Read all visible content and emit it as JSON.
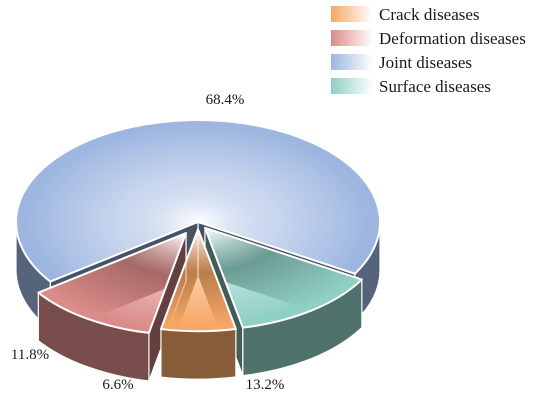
{
  "chart_data": {
    "type": "pie",
    "title": "",
    "legend_position": "top-right",
    "exploded": true,
    "three_d": true,
    "slices": [
      {
        "name": "Crack diseases",
        "value": 6.6,
        "label": "6.6%",
        "color": "#f6a765"
      },
      {
        "name": "Deformation diseases",
        "value": 11.8,
        "label": "11.8%",
        "color": "#db8c88"
      },
      {
        "name": "Joint diseases",
        "value": 68.4,
        "label": "68.4%",
        "color": "#9db6e0"
      },
      {
        "name": "Surface diseases",
        "value": 13.2,
        "label": "13.2%",
        "color": "#8fcfc4"
      }
    ]
  }
}
